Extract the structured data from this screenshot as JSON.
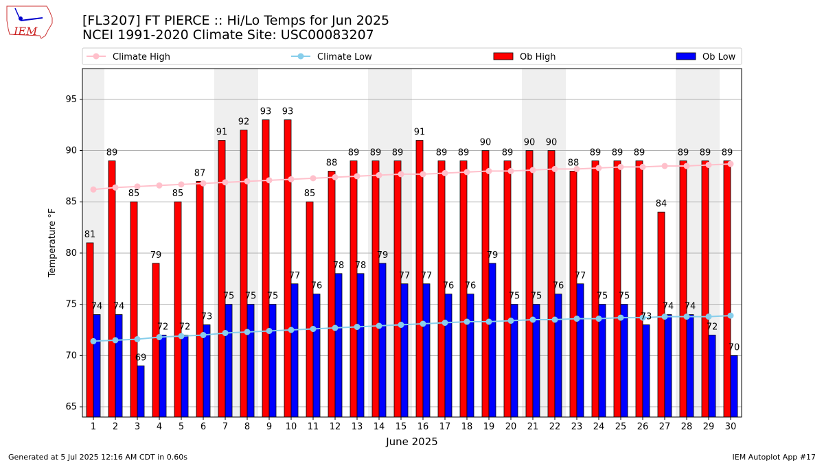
{
  "header": {
    "title_line1": "[FL3207] FT PIERCE :: Hi/Lo Temps for Jun 2025",
    "title_line2": "NCEI 1991-2020 Climate Site: USC00083207",
    "logo_text": "IEM"
  },
  "footer": {
    "left": "Generated at 5 Jul 2025 12:16 AM CDT in 0.60s",
    "right": "IEM Autoplot App #17"
  },
  "chart_data": {
    "type": "bar",
    "title": "[FL3207] FT PIERCE :: Hi/Lo Temps for Jun 2025",
    "subtitle": "NCEI 1991-2020 Climate Site: USC00083207",
    "xlabel": "June 2025",
    "ylabel": "Temperature °F",
    "ylim": [
      64,
      98
    ],
    "yticks": [
      65,
      70,
      75,
      80,
      85,
      90,
      95
    ],
    "grid": true,
    "legend_position": "top",
    "categories": [
      "1",
      "2",
      "3",
      "4",
      "5",
      "6",
      "7",
      "8",
      "9",
      "10",
      "11",
      "12",
      "13",
      "14",
      "15",
      "16",
      "17",
      "18",
      "19",
      "20",
      "21",
      "22",
      "23",
      "24",
      "25",
      "26",
      "27",
      "28",
      "29",
      "30"
    ],
    "weekend_shaded_days": [
      1,
      7,
      8,
      14,
      15,
      21,
      22,
      28,
      29
    ],
    "series": [
      {
        "name": "Ob High",
        "kind": "bar",
        "color": "#ff0000",
        "values": [
          81,
          89,
          85,
          79,
          85,
          87,
          91,
          92,
          93,
          93,
          85,
          88,
          89,
          89,
          89,
          91,
          89,
          89,
          90,
          89,
          90,
          90,
          88,
          89,
          89,
          89,
          84,
          89,
          89,
          89
        ]
      },
      {
        "name": "Ob Low",
        "kind": "bar",
        "color": "#0000ff",
        "values": [
          74,
          74,
          69,
          72,
          72,
          73,
          75,
          75,
          75,
          77,
          76,
          78,
          78,
          79,
          77,
          77,
          76,
          76,
          79,
          75,
          75,
          76,
          77,
          75,
          75,
          73,
          74,
          74,
          72,
          70
        ]
      },
      {
        "name": "Climate High",
        "kind": "line",
        "color": "#ffc0cb",
        "values": [
          86.2,
          86.4,
          86.5,
          86.6,
          86.7,
          86.8,
          86.9,
          87.0,
          87.1,
          87.2,
          87.3,
          87.4,
          87.5,
          87.6,
          87.7,
          87.7,
          87.8,
          87.9,
          88.0,
          88.0,
          88.1,
          88.2,
          88.2,
          88.3,
          88.4,
          88.4,
          88.5,
          88.5,
          88.6,
          88.7
        ]
      },
      {
        "name": "Climate Low",
        "kind": "line",
        "color": "#87ceeb",
        "values": [
          71.4,
          71.5,
          71.6,
          71.8,
          71.9,
          72.0,
          72.2,
          72.3,
          72.4,
          72.5,
          72.6,
          72.7,
          72.8,
          72.9,
          73.0,
          73.1,
          73.2,
          73.3,
          73.3,
          73.4,
          73.5,
          73.5,
          73.6,
          73.6,
          73.7,
          73.7,
          73.8,
          73.8,
          73.8,
          73.9
        ]
      }
    ]
  }
}
